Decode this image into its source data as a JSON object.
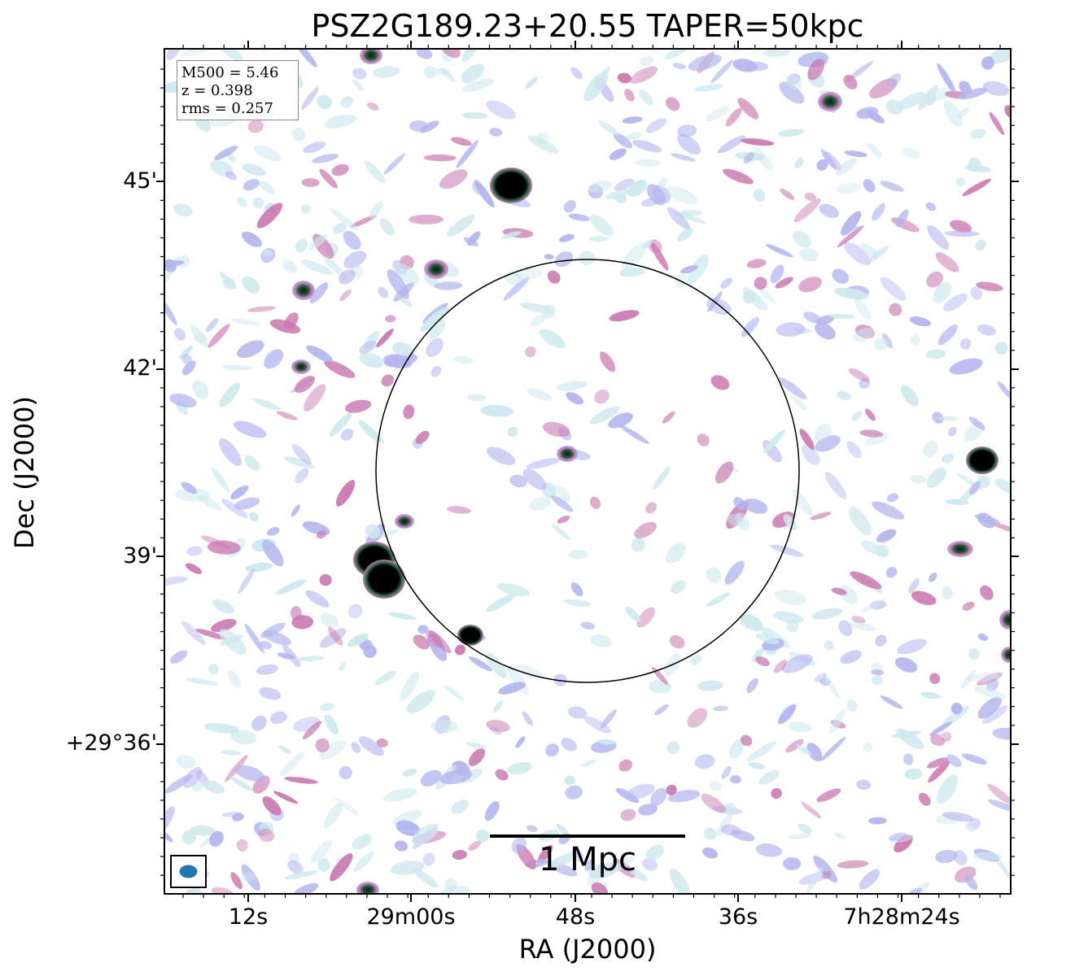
{
  "title": "PSZ2G189.23+20.55 TAPER=50kpc",
  "xaxis": {
    "label": "RA (J2000)",
    "ticks": [
      "12s",
      "29m00s",
      "48s",
      "36s",
      "7h28m24s"
    ]
  },
  "yaxis": {
    "label": "Dec (J2000)",
    "ticks": [
      "45'",
      "42'",
      "39'",
      "+29°36'"
    ]
  },
  "legend": {
    "m500": "M500 = 5.46",
    "z": "z = 0.398",
    "rms": "rms = 0.257"
  },
  "scale_bar": {
    "label": "1 Mpc"
  },
  "colors": {
    "noise_light": "#cfe9ee",
    "noise_mid": "#b3b5ee",
    "noise_pink": "#c97ab0",
    "source_edge": "#2e6b4d",
    "source_core": "#000000",
    "beam": "#1f77b4"
  }
}
